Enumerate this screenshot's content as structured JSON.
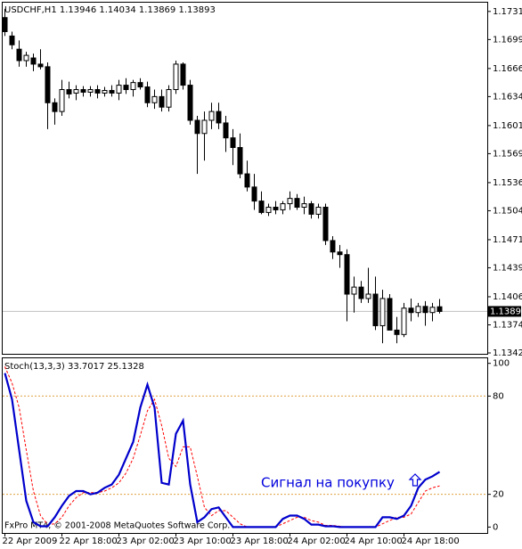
{
  "chart_data": [
    {
      "type": "candlestick",
      "title": "USDCHF,H1  1.13946 1.14034 1.13869 1.13893",
      "categories": [
        "22 Apr 2009",
        null,
        null,
        null,
        null,
        null,
        null,
        null,
        "22 Apr 18:00",
        null,
        null,
        null,
        null,
        null,
        null,
        null,
        "23 Apr 02:00",
        null,
        null,
        null,
        null,
        null,
        null,
        null,
        "23 Apr 10:00",
        null,
        null,
        null,
        null,
        null,
        null,
        null,
        "23 Apr 18:00",
        null,
        null,
        null,
        null,
        null,
        null,
        null,
        "24 Apr 02:00",
        null,
        null,
        null,
        null,
        null,
        null,
        null,
        "24 Apr 10:00",
        null,
        null,
        null,
        null,
        null,
        null,
        null,
        "24 Apr 18:00",
        null,
        null,
        null,
        null,
        null
      ],
      "open": [
        1.1724,
        1.1703,
        1.1688,
        1.1675,
        1.1678,
        1.1671,
        1.1668,
        1.1627,
        1.1617,
        1.1642,
        1.1638,
        1.1642,
        1.1639,
        1.1642,
        1.1638,
        1.1641,
        1.1638,
        1.1647,
        1.1642,
        1.165,
        1.1645,
        1.1627,
        1.1634,
        1.1622,
        1.1642,
        1.1671,
        1.1647,
        1.1607,
        1.1592,
        1.1607,
        1.1617,
        1.1604,
        1.1587,
        1.1576,
        1.1546,
        1.1531,
        1.1515,
        1.1502,
        1.1508,
        1.1505,
        1.1512,
        1.1518,
        1.1508,
        1.1512,
        1.15,
        1.1508,
        1.147,
        1.1457,
        1.1454,
        1.1409,
        1.1417,
        1.1404,
        1.1409,
        1.1373,
        1.1404,
        1.1368,
        1.1363,
        1.1393,
        1.1388,
        1.1395,
        1.1388,
        1.13946
      ],
      "high": [
        1.1734,
        1.1708,
        1.1698,
        1.1685,
        1.1683,
        1.1688,
        1.1673,
        1.1632,
        1.1653,
        1.1651,
        1.1647,
        1.1646,
        1.1646,
        1.1647,
        1.1645,
        1.1647,
        1.1653,
        1.1655,
        1.1653,
        1.1655,
        1.1651,
        1.1642,
        1.1642,
        1.1647,
        1.1675,
        1.1673,
        1.1653,
        1.1612,
        1.1617,
        1.1627,
        1.1627,
        1.1612,
        1.1597,
        1.1592,
        1.1561,
        1.1546,
        1.1526,
        1.1512,
        1.1515,
        1.1515,
        1.1526,
        1.1523,
        1.152,
        1.1515,
        1.1512,
        1.1512,
        1.1475,
        1.1465,
        1.146,
        1.1429,
        1.1424,
        1.1439,
        1.1429,
        1.1414,
        1.1409,
        1.1383,
        1.1399,
        1.1404,
        1.1399,
        1.1401,
        1.1399,
        1.14034
      ],
      "low": [
        1.1703,
        1.1688,
        1.1668,
        1.1668,
        1.1663,
        1.1665,
        1.1597,
        1.1602,
        1.1612,
        1.1632,
        1.163,
        1.1634,
        1.1634,
        1.1632,
        1.1634,
        1.1634,
        1.163,
        1.1637,
        1.1634,
        1.1642,
        1.1622,
        1.162,
        1.1617,
        1.1617,
        1.1637,
        1.1642,
        1.1602,
        1.1546,
        1.1561,
        1.1597,
        1.1597,
        1.1571,
        1.1556,
        1.1541,
        1.1526,
        1.1505,
        1.15,
        1.1498,
        1.15,
        1.15,
        1.1505,
        1.1505,
        1.15,
        1.1495,
        1.1495,
        1.1465,
        1.1449,
        1.1439,
        1.1378,
        1.1388,
        1.1399,
        1.1399,
        1.1368,
        1.1353,
        1.1368,
        1.1353,
        1.136,
        1.1378,
        1.1383,
        1.1373,
        1.1378,
        1.13869
      ],
      "close": [
        1.1708,
        1.1693,
        1.1675,
        1.1681,
        1.1671,
        1.1668,
        1.1627,
        1.1617,
        1.1642,
        1.1637,
        1.1642,
        1.1639,
        1.1642,
        1.1638,
        1.1641,
        1.1638,
        1.1647,
        1.1642,
        1.165,
        1.1645,
        1.1627,
        1.1634,
        1.1622,
        1.1642,
        1.1671,
        1.1647,
        1.1607,
        1.1592,
        1.1607,
        1.1617,
        1.1604,
        1.1587,
        1.1576,
        1.1546,
        1.1531,
        1.1515,
        1.1502,
        1.1508,
        1.1505,
        1.1512,
        1.1518,
        1.1508,
        1.1512,
        1.15,
        1.1508,
        1.147,
        1.1457,
        1.1454,
        1.1409,
        1.1417,
        1.1404,
        1.1409,
        1.1373,
        1.1404,
        1.1368,
        1.1363,
        1.1393,
        1.1388,
        1.1395,
        1.1388,
        1.1394,
        1.13893
      ],
      "up_color": "#ffffff",
      "down_color": "#000000",
      "ylim": [
        1.1341,
        1.1742
      ],
      "yticks": [
        {
          "value": 1.1731,
          "label": "1.17310"
        },
        {
          "value": 1.1699,
          "label": "1.16990"
        },
        {
          "value": 1.1666,
          "label": "1.16660"
        },
        {
          "value": 1.1634,
          "label": "1.16340"
        },
        {
          "value": 1.1601,
          "label": "1.16010"
        },
        {
          "value": 1.1569,
          "label": "1.15690"
        },
        {
          "value": 1.1536,
          "label": "1.15360"
        },
        {
          "value": 1.1504,
          "label": "1.15040"
        },
        {
          "value": 1.1471,
          "label": "1.14710"
        },
        {
          "value": 1.1439,
          "label": "1.14390"
        },
        {
          "value": 1.1406,
          "label": "1.14060"
        },
        {
          "value": 1.1374,
          "label": "1.13740"
        },
        {
          "value": 1.1342,
          "label": "1.13420"
        }
      ]
    },
    {
      "type": "line",
      "title": "Stoch(13,3,3) 33.7017 25.1328",
      "series": [
        {
          "color": "#0000cc",
          "style": "solid",
          "values": [
            94,
            78,
            47,
            16,
            3,
            0.5,
            0.5,
            6,
            13,
            19,
            22,
            22,
            20,
            21,
            24,
            26,
            32,
            42,
            52,
            73,
            87,
            73,
            27,
            26,
            57,
            65,
            26,
            3,
            6,
            11,
            12,
            6,
            0,
            0,
            0,
            0,
            0,
            0,
            0,
            5,
            7,
            7,
            5,
            1.5,
            1.5,
            0.5,
            0.5,
            0,
            0,
            0,
            0,
            0,
            0,
            6,
            6,
            5,
            7,
            13,
            24,
            29,
            31,
            33.7017
          ]
        },
        {
          "color": "#ff0000",
          "style": "dashed",
          "values": [
            98,
            88,
            73,
            47,
            22,
            7,
            1.5,
            2,
            6,
            13,
            18,
            21,
            21,
            21,
            22,
            24,
            27,
            33,
            42,
            56,
            71,
            78,
            62,
            42,
            37,
            49,
            49,
            31,
            12,
            7,
            10,
            10,
            6,
            2,
            0,
            0,
            0,
            0,
            0,
            2,
            4,
            6,
            6,
            4,
            3,
            1,
            1,
            0.5,
            0,
            0,
            0,
            0,
            0,
            2,
            4,
            6,
            6,
            8,
            15,
            22,
            24,
            25.1328
          ]
        }
      ],
      "levels": [
        80,
        20
      ],
      "level_color": "#e0a040",
      "ylim": [
        -3.6,
        103.1
      ],
      "yticks": [
        100,
        80,
        20,
        0
      ],
      "annotation": "Сигнал на покупку"
    }
  ],
  "footer": "FxPro MT4, © 2001-2008 MetaQuotes Software Corp."
}
